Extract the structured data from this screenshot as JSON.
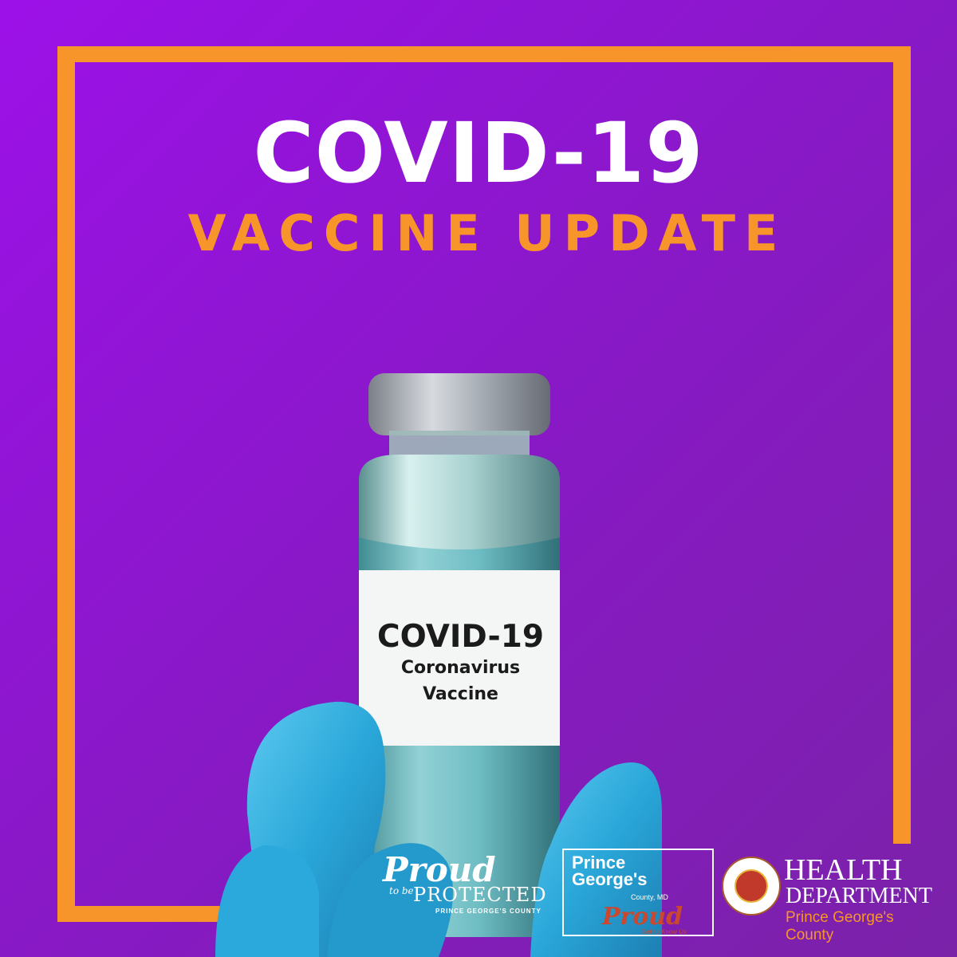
{
  "headline": "COVID-19",
  "subheadline": "VACCINE UPDATE",
  "vial_label": {
    "line1": "COVID-19",
    "line2": "Coronavirus",
    "line3": "Vaccine"
  },
  "logos": {
    "proud_protected": {
      "script": "Proud",
      "small": "to be",
      "caps": "PROTECTED",
      "county": "PRINCE GEORGE'S COUNTY"
    },
    "pg_proud": {
      "line1": "Prince",
      "line2": "George's",
      "md": "County, MD",
      "proud": "Proud",
      "tagline": "Get to Know Us"
    },
    "health_department": {
      "line1": "HEALTH",
      "line2": "DEPARTMENT",
      "line3": "Prince George's County"
    }
  },
  "colors": {
    "background_start": "#9c11e8",
    "background_end": "#7a22a8",
    "accent_orange": "#f7952b",
    "glove_blue": "#2fb3e3"
  }
}
